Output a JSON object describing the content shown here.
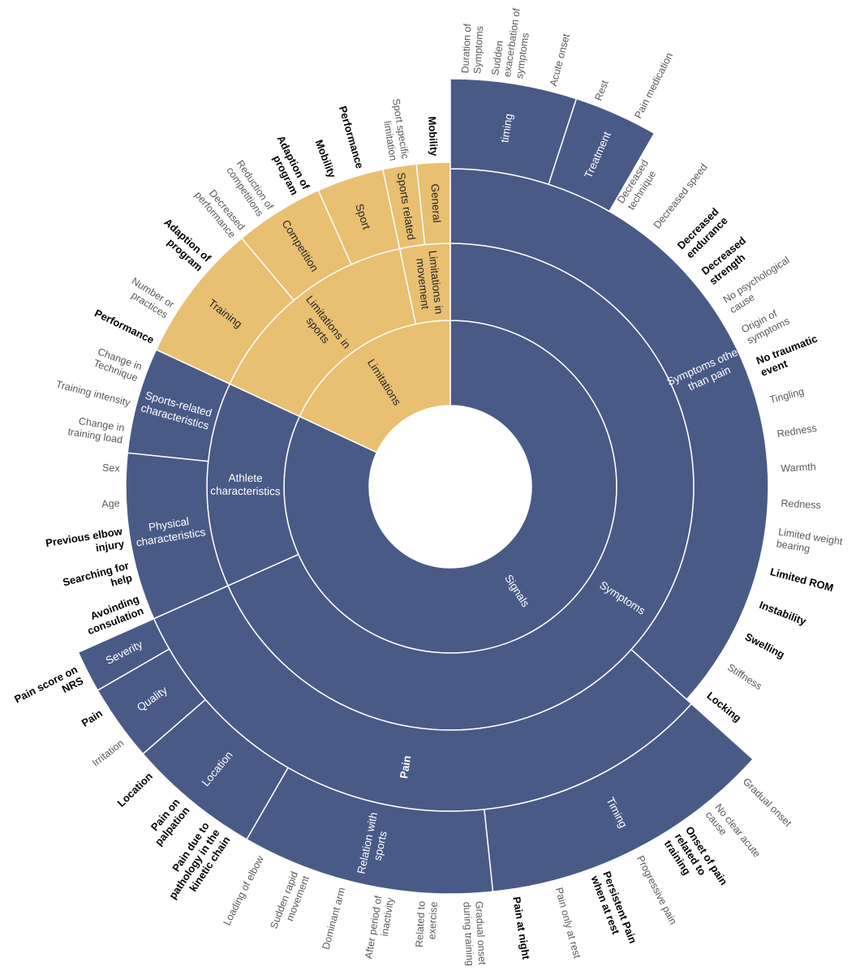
{
  "segments": [
    {
      "label": [
        "Signals"
      ],
      "color": "#4a5a87"
    },
    {
      "label": [
        "Limitations"
      ],
      "color": "#e9bf72"
    },
    {
      "label": [
        "Symptoms"
      ],
      "color": "#4a5a87"
    },
    {
      "label": [
        "Athlete",
        "characteristics"
      ],
      "color": "#4a5a87"
    },
    {
      "label": [
        "Limitations in",
        "sports"
      ],
      "color": "#e9bf72"
    },
    {
      "label": [
        "Limitations in",
        "movement"
      ],
      "color": "#e9bf72"
    },
    {
      "label": [
        "Symptoms other",
        "than pain"
      ],
      "color": "#4a5a87"
    },
    {
      "label": [
        "Pain"
      ],
      "color": "#4a5a87",
      "bold": true
    },
    {
      "label": [
        "Physical",
        "characteristics"
      ],
      "color": "#4a5a87"
    },
    {
      "label": [
        "Sports-related",
        "characteristics"
      ],
      "color": "#4a5a87"
    },
    {
      "label": [
        "Training"
      ],
      "color": "#e9bf72"
    },
    {
      "label": [
        "Competition"
      ],
      "color": "#e9bf72"
    },
    {
      "label": [
        "Sport"
      ],
      "color": "#e9bf72"
    },
    {
      "label": [
        "Sports related"
      ],
      "color": "#e9bf72"
    },
    {
      "label": [
        "General"
      ],
      "color": "#e9bf72"
    },
    {
      "label": [
        "timing"
      ],
      "color": "#4a5a87"
    },
    {
      "label": [
        "Treatment"
      ],
      "color": "#4a5a87"
    },
    {
      "label": [
        "Timing"
      ],
      "color": "#4a5a87"
    },
    {
      "label": [
        "Relation with",
        "sports"
      ],
      "color": "#4a5a87"
    },
    {
      "label": [
        "Location"
      ],
      "color": "#4a5a87"
    },
    {
      "label": [
        "Quality"
      ],
      "color": "#4a5a87"
    },
    {
      "label": [
        "Severity"
      ],
      "color": "#4a5a87"
    }
  ],
  "outer_labels": [
    {
      "text": [
        "Duration of",
        "Symptoms"
      ],
      "bold": false
    },
    {
      "text": [
        "Sudden",
        "exacerbation of",
        "symptoms"
      ],
      "bold": false
    },
    {
      "text": [
        "Acute onset"
      ],
      "bold": false
    },
    {
      "text": [
        "Rest"
      ],
      "bold": false
    },
    {
      "text": [
        "Pain medication"
      ],
      "bold": false
    },
    {
      "text": [
        "Decreased",
        "technique"
      ],
      "bold": false
    },
    {
      "text": [
        "Decreased speed"
      ],
      "bold": false
    },
    {
      "text": [
        "Decreased",
        "endurance"
      ],
      "bold": true
    },
    {
      "text": [
        "Decreased",
        "strength"
      ],
      "bold": true
    },
    {
      "text": [
        "No psychological",
        "cause"
      ],
      "bold": false
    },
    {
      "text": [
        "Origin of",
        "symptoms"
      ],
      "bold": false
    },
    {
      "text": [
        "No traumatic",
        "event"
      ],
      "bold": true
    },
    {
      "text": [
        "Tingling"
      ],
      "bold": false
    },
    {
      "text": [
        "Redness"
      ],
      "bold": false
    },
    {
      "text": [
        "Warmth"
      ],
      "bold": false
    },
    {
      "text": [
        "Redness"
      ],
      "bold": false
    },
    {
      "text": [
        "Limited weight",
        "bearing"
      ],
      "bold": false
    },
    {
      "text": [
        "Limited ROM"
      ],
      "bold": true
    },
    {
      "text": [
        "Instability"
      ],
      "bold": true
    },
    {
      "text": [
        "Swelling"
      ],
      "bold": true
    },
    {
      "text": [
        "Stiffness"
      ],
      "bold": false
    },
    {
      "text": [
        "Locking"
      ],
      "bold": true
    },
    {
      "text": [
        "Gradual onset"
      ],
      "bold": false
    },
    {
      "text": [
        "No clear acute",
        "cause"
      ],
      "bold": false
    },
    {
      "text": [
        "Onset of pain",
        "related to",
        "training"
      ],
      "bold": true
    },
    {
      "text": [
        "Progressive pain"
      ],
      "bold": false
    },
    {
      "text": [
        "Persistent Pain",
        "when at rest"
      ],
      "bold": true
    },
    {
      "text": [
        "Pain only at rest"
      ],
      "bold": false
    },
    {
      "text": [
        "Pain at night"
      ],
      "bold": true
    },
    {
      "text": [
        "Gradual onset",
        "during training"
      ],
      "bold": false
    },
    {
      "text": [
        "Related to",
        "exercise"
      ],
      "bold": false
    },
    {
      "text": [
        "After period of",
        "inactivity"
      ],
      "bold": false
    },
    {
      "text": [
        "Dominant arm"
      ],
      "bold": false
    },
    {
      "text": [
        "Sudden rapid",
        "movement"
      ],
      "bold": false
    },
    {
      "text": [
        "Loading of elbow"
      ],
      "bold": false
    },
    {
      "text": [
        "Pain due to",
        "pathology in the",
        "kinetic chain"
      ],
      "bold": true
    },
    {
      "text": [
        "Pain on",
        "palpation"
      ],
      "bold": true
    },
    {
      "text": [
        "Location"
      ],
      "bold": true
    },
    {
      "text": [
        "Irritation"
      ],
      "bold": false
    },
    {
      "text": [
        "Pain"
      ],
      "bold": true
    },
    {
      "text": [
        "Pain score on",
        "NRS"
      ],
      "bold": true
    },
    {
      "text": [
        "Avoinding",
        "consulation"
      ],
      "bold": true
    },
    {
      "text": [
        "Searching for",
        "help"
      ],
      "bold": true
    },
    {
      "text": [
        "Previous elbow",
        "injury"
      ],
      "bold": true
    },
    {
      "text": [
        "Age"
      ],
      "bold": false
    },
    {
      "text": [
        "Sex"
      ],
      "bold": false
    },
    {
      "text": [
        "Change in",
        "training load"
      ],
      "bold": false
    },
    {
      "text": [
        "Training intensity"
      ],
      "bold": false
    },
    {
      "text": [
        "Change in",
        "Technique"
      ],
      "bold": false
    },
    {
      "text": [
        "Performance"
      ],
      "bold": true
    },
    {
      "text": [
        "Number or",
        "practices"
      ],
      "bold": false
    },
    {
      "text": [
        "Adaption of",
        "program"
      ],
      "bold": true
    },
    {
      "text": [
        "Decreased",
        "performance"
      ],
      "bold": false
    },
    {
      "text": [
        "Reduction of",
        "competitions"
      ],
      "bold": false
    },
    {
      "text": [
        "Adaption of",
        "program"
      ],
      "bold": true
    },
    {
      "text": [
        "Mobility"
      ],
      "bold": true
    },
    {
      "text": [
        "Performance"
      ],
      "bold": true
    },
    {
      "text": [
        "Sport specific",
        "limitation"
      ],
      "bold": false
    },
    {
      "text": [
        "Mobility"
      ],
      "bold": true
    }
  ]
}
